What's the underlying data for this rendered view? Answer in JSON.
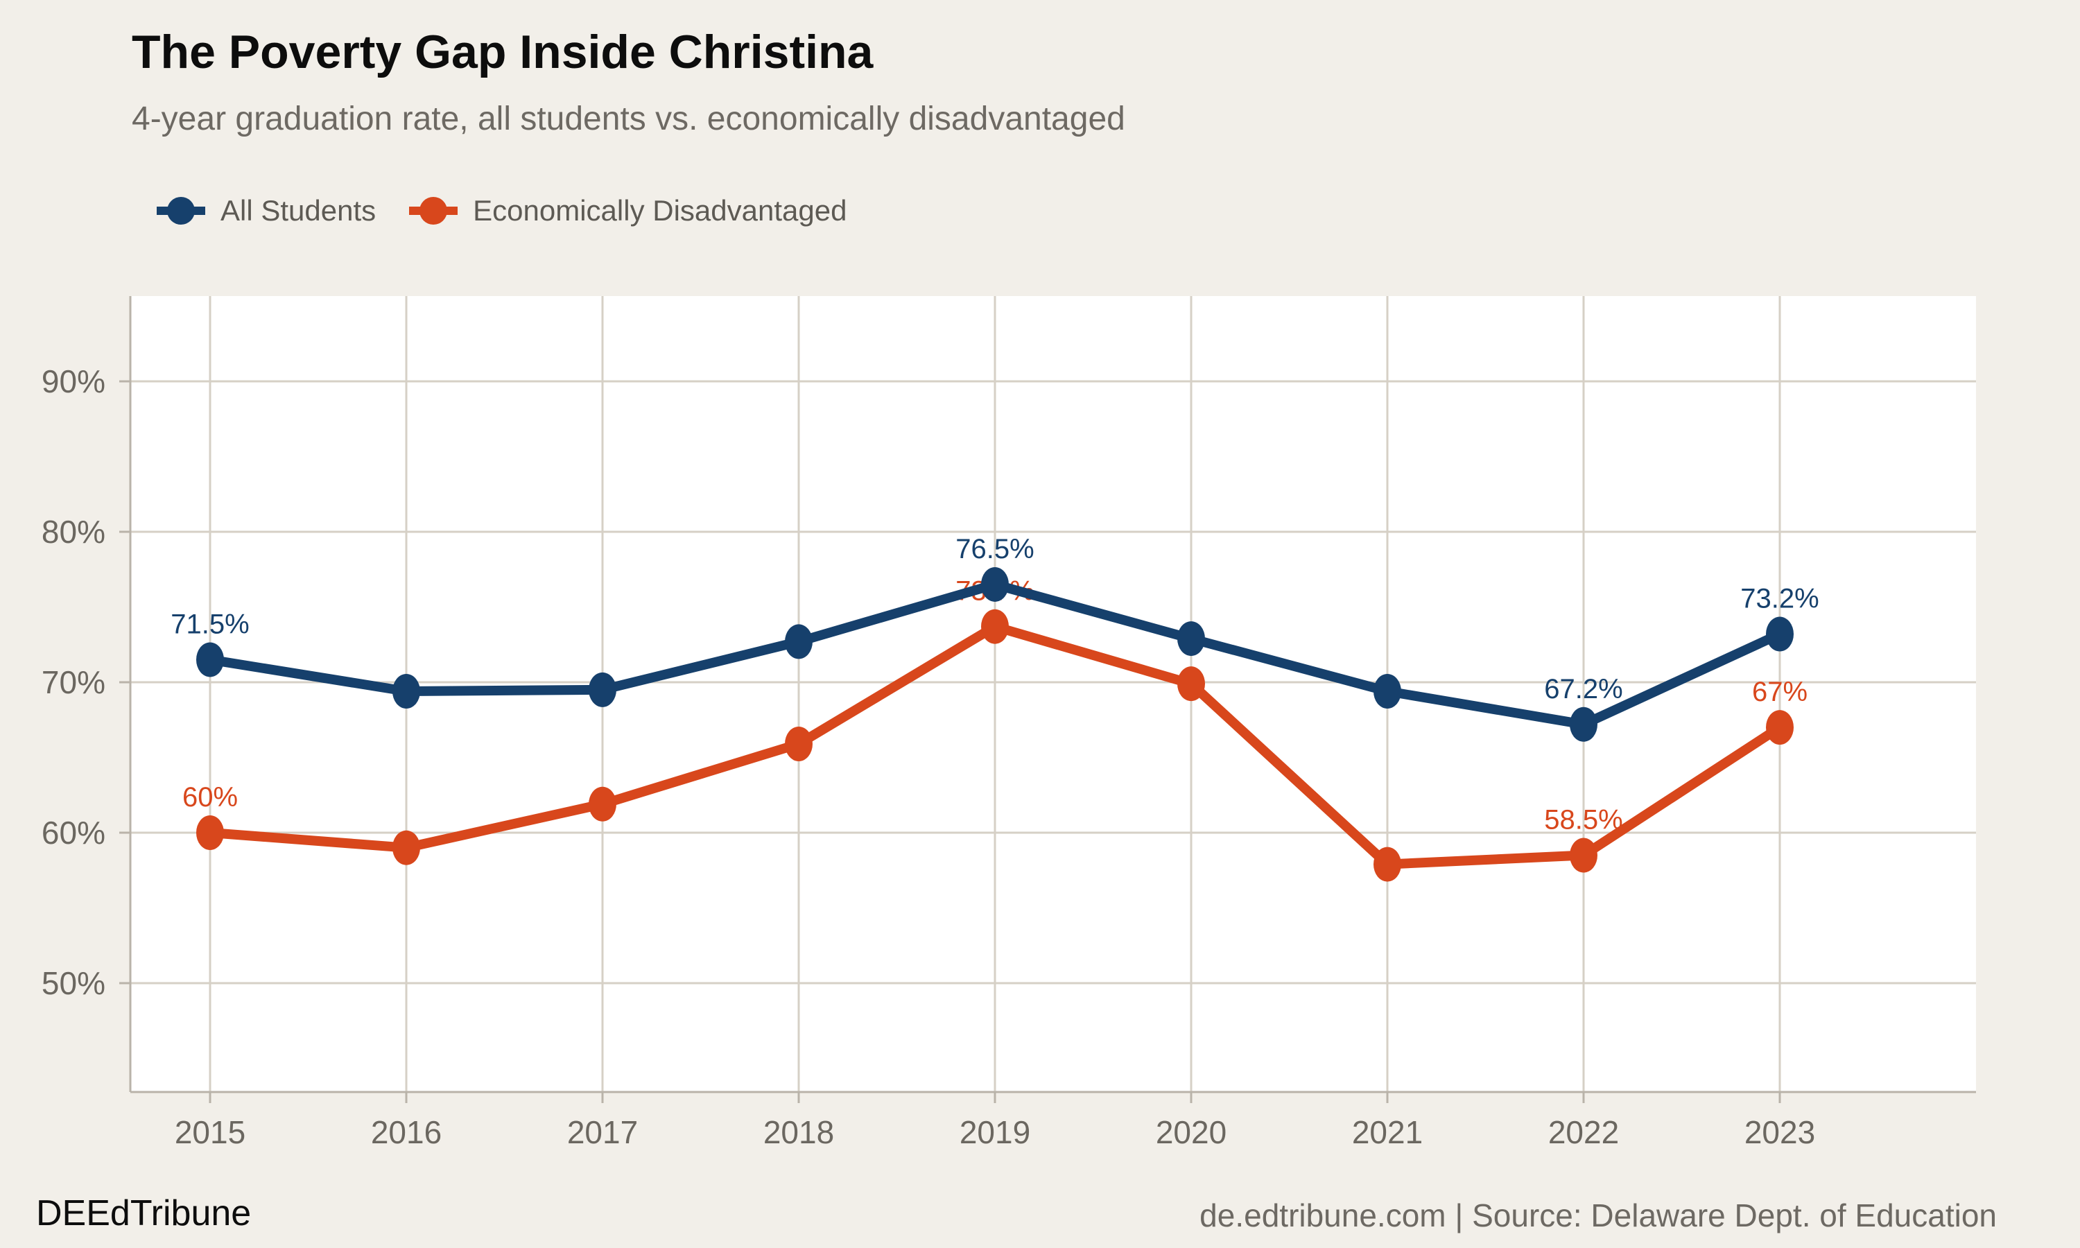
{
  "title": "The Poverty Gap Inside Christina",
  "subtitle": "4-year graduation rate, all students vs. economically disadvantaged",
  "legend": {
    "items": [
      {
        "label": "All Students",
        "color": "#16406c"
      },
      {
        "label": "Economically Disadvantaged",
        "color": "#d8471c"
      }
    ]
  },
  "footer": {
    "brand": "DEEdTribune",
    "attribution": "de.edtribune.com | Source: Delaware Dept. of Education"
  },
  "chart_data": {
    "type": "line",
    "x": [
      2015,
      2016,
      2017,
      2018,
      2019,
      2020,
      2021,
      2022,
      2023
    ],
    "x_tick_labels": [
      "2015",
      "2016",
      "2017",
      "2018",
      "2019",
      "2020",
      "2021",
      "2022",
      "2023"
    ],
    "y_ticks": [
      {
        "value": 90,
        "label": "90%"
      },
      {
        "value": 80,
        "label": "80%"
      },
      {
        "value": 70,
        "label": "70%"
      },
      {
        "value": 60,
        "label": "60%"
      },
      {
        "value": 50,
        "label": "50%"
      }
    ],
    "ylim": [
      42.8,
      95.7
    ],
    "grid": true,
    "legend_position": "top-left",
    "series": [
      {
        "name": "All Students",
        "color": "#16406c",
        "values": [
          71.5,
          69.4,
          69.5,
          72.7,
          76.5,
          72.9,
          69.4,
          67.2,
          73.2
        ],
        "point_labels": {
          "2015": "71.5%",
          "2019": "76.5%",
          "2022": "67.2%",
          "2023": "73.2%"
        }
      },
      {
        "name": "Economically Disadvantaged",
        "color": "#d8471c",
        "values": [
          60,
          59,
          61.9,
          65.9,
          73.7,
          69.9,
          57.9,
          58.5,
          67
        ],
        "point_labels": {
          "2015": "60%",
          "2019": "73.7%",
          "2022": "58.5%",
          "2023": "67%"
        }
      }
    ],
    "colors": {
      "background": "#f2efe9",
      "plot_background": "#ffffff",
      "gridline": "#d6d0c6",
      "axis_line": "#b9b3a9",
      "tick_text": "#6b6760",
      "title_text": "#0d0d0d",
      "subtitle_text": "#6d6963"
    }
  }
}
